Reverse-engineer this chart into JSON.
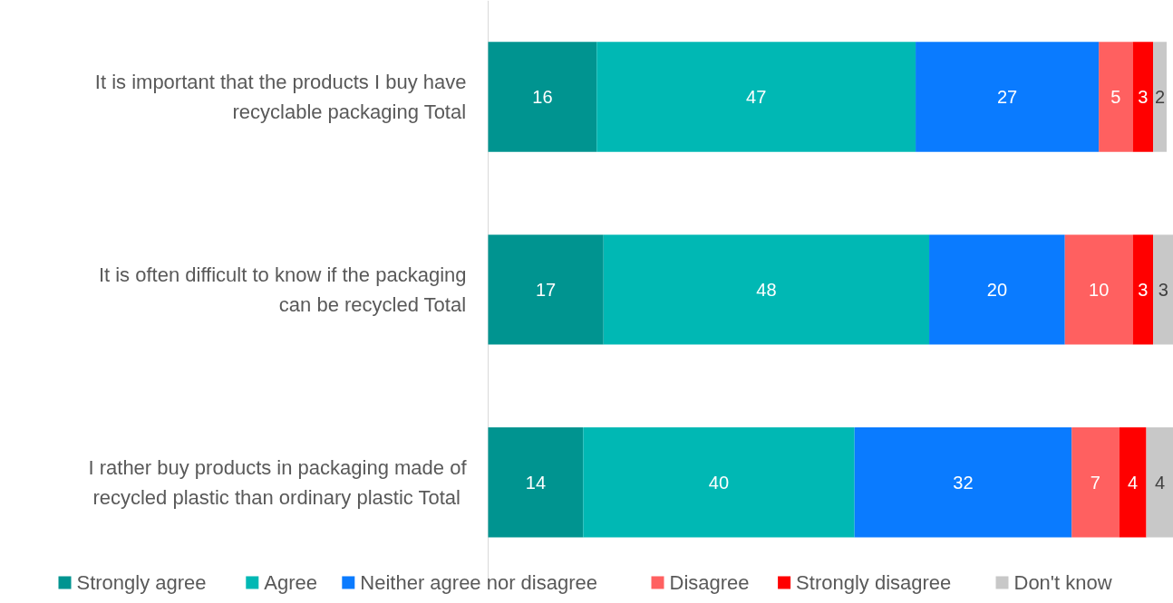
{
  "chart_data": {
    "type": "bar",
    "orientation": "horizontal",
    "stacked": true,
    "data_labels": true,
    "legend": "bottom",
    "grid": false,
    "categories": [
      "It is important that the products I buy have recyclable packaging Total",
      "It is often difficult to know if the packaging can be recycled Total",
      "I rather buy products in packaging made of recycled plastic than ordinary plastic  Total"
    ],
    "series": [
      {
        "name": "Strongly agree",
        "color": "#009490",
        "values": [
          16,
          17,
          14
        ]
      },
      {
        "name": "Agree",
        "color": "#00b8b4",
        "values": [
          47,
          48,
          40
        ]
      },
      {
        "name": "Neither agree nor disagree",
        "color": "#0a7bff",
        "values": [
          27,
          20,
          32
        ]
      },
      {
        "name": "Disagree",
        "color": "#ff6060",
        "values": [
          5,
          10,
          7
        ]
      },
      {
        "name": "Strongly disagree",
        "color": "#ff0000",
        "values": [
          3,
          3,
          4
        ]
      },
      {
        "name": "Don't know",
        "color": "#c8c8c8",
        "values": [
          2,
          3,
          4
        ]
      }
    ]
  }
}
